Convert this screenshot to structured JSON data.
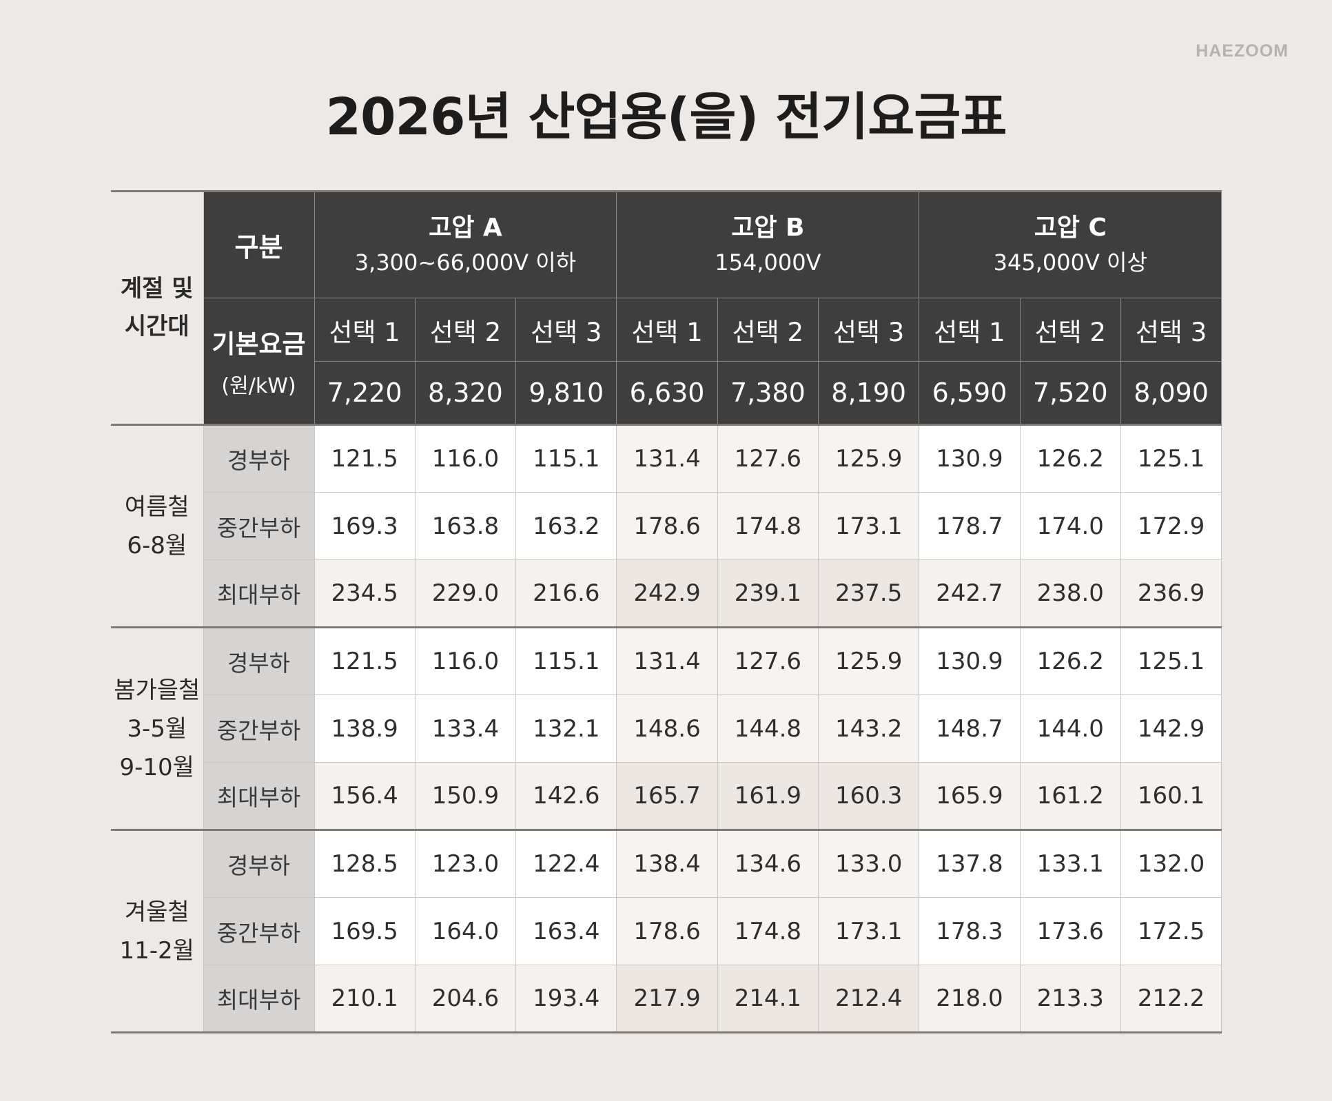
{
  "brand": "HAEZOOM",
  "title": "2026년 산업용(을) 전기요금표",
  "table": {
    "season_time_label": [
      "계절 및",
      "시간대"
    ],
    "gubun_label": "구분",
    "base_fee_label": "기본요금",
    "base_fee_unit": "(원/kW)",
    "groups": [
      {
        "name": "고압 A",
        "voltage": "3,300~66,000V 이하"
      },
      {
        "name": "고압 B",
        "voltage": "154,000V"
      },
      {
        "name": "고압 C",
        "voltage": "345,000V 이상"
      }
    ],
    "options": [
      "선택 1",
      "선택 2",
      "선택 3",
      "선택 1",
      "선택 2",
      "선택 3",
      "선택 1",
      "선택 2",
      "선택 3"
    ],
    "base_fees": [
      "7,220",
      "8,320",
      "9,810",
      "6,630",
      "7,380",
      "8,190",
      "6,590",
      "7,520",
      "8,090"
    ],
    "seasons": [
      {
        "name": "여름철",
        "months": [
          "6-8월"
        ],
        "rows": [
          {
            "load": "경부하",
            "values": [
              "121.5",
              "116.0",
              "115.1",
              "131.4",
              "127.6",
              "125.9",
              "130.9",
              "126.2",
              "125.1"
            ]
          },
          {
            "load": "중간부하",
            "values": [
              "169.3",
              "163.8",
              "163.2",
              "178.6",
              "174.8",
              "173.1",
              "178.7",
              "174.0",
              "172.9"
            ]
          },
          {
            "load": "최대부하",
            "values": [
              "234.5",
              "229.0",
              "216.6",
              "242.9",
              "239.1",
              "237.5",
              "242.7",
              "238.0",
              "236.9"
            ]
          }
        ]
      },
      {
        "name": "봄가을철",
        "months": [
          "3-5월",
          "9-10월"
        ],
        "rows": [
          {
            "load": "경부하",
            "values": [
              "121.5",
              "116.0",
              "115.1",
              "131.4",
              "127.6",
              "125.9",
              "130.9",
              "126.2",
              "125.1"
            ]
          },
          {
            "load": "중간부하",
            "values": [
              "138.9",
              "133.4",
              "132.1",
              "148.6",
              "144.8",
              "143.2",
              "148.7",
              "144.0",
              "142.9"
            ]
          },
          {
            "load": "최대부하",
            "values": [
              "156.4",
              "150.9",
              "142.6",
              "165.7",
              "161.9",
              "160.3",
              "165.9",
              "161.2",
              "160.1"
            ]
          }
        ]
      },
      {
        "name": "겨울철",
        "months": [
          "11-2월"
        ],
        "rows": [
          {
            "load": "경부하",
            "values": [
              "128.5",
              "123.0",
              "122.4",
              "138.4",
              "134.6",
              "133.0",
              "137.8",
              "133.1",
              "132.0"
            ]
          },
          {
            "load": "중간부하",
            "values": [
              "169.5",
              "164.0",
              "163.4",
              "178.6",
              "174.8",
              "173.1",
              "178.3",
              "173.6",
              "172.5"
            ]
          },
          {
            "load": "최대부하",
            "values": [
              "210.1",
              "204.6",
              "193.4",
              "217.9",
              "214.1",
              "212.4",
              "218.0",
              "213.3",
              "212.2"
            ]
          }
        ]
      }
    ]
  }
}
